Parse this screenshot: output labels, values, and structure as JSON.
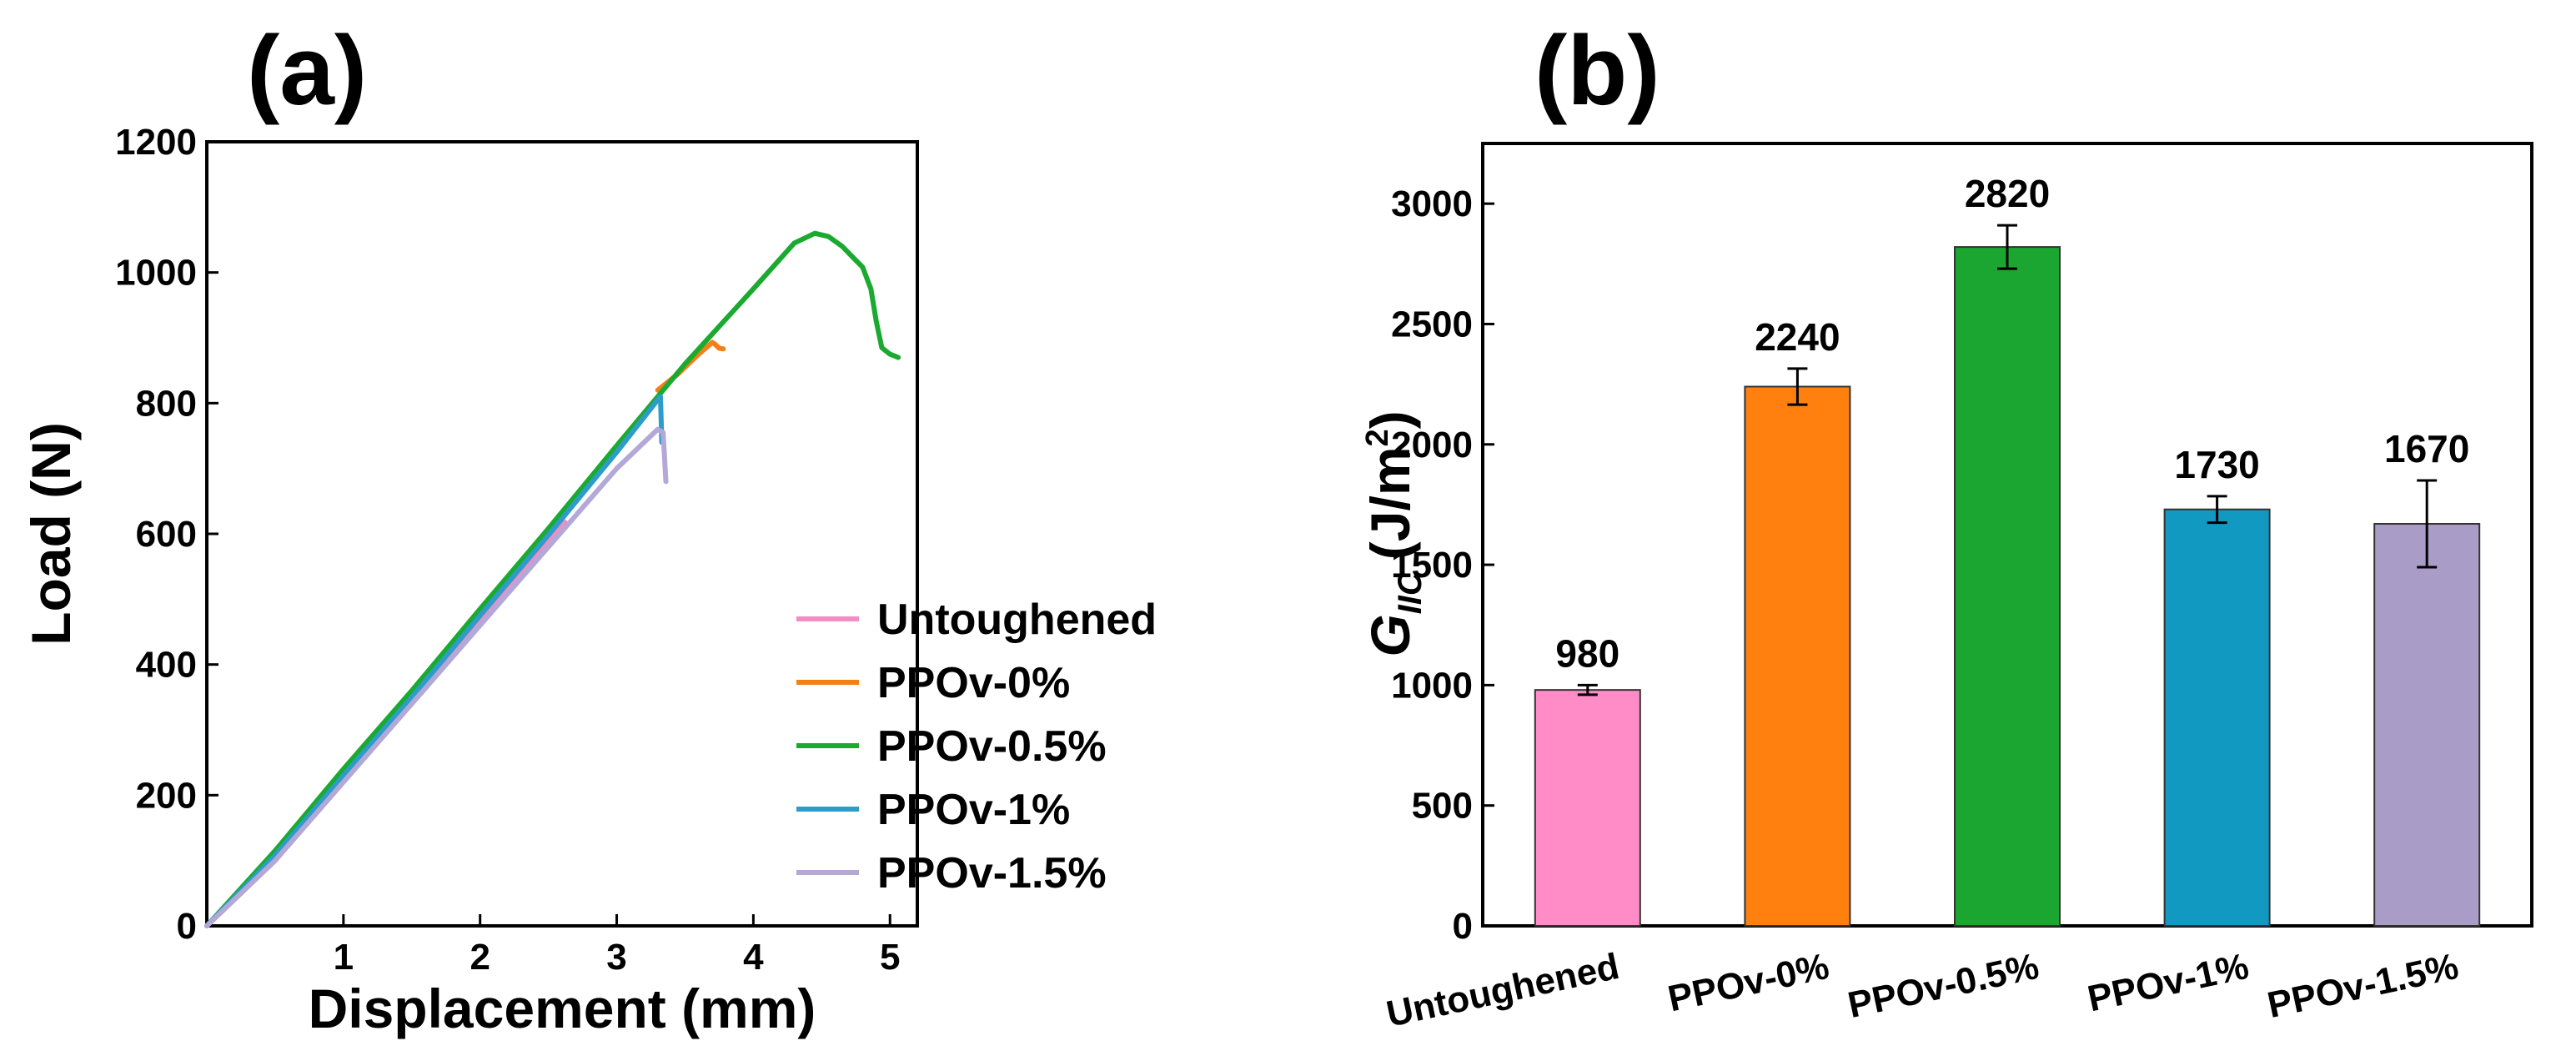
{
  "chart_data": [
    {
      "panel": "(a)",
      "type": "line",
      "title": "",
      "xlabel": "Displacement (mm)",
      "ylabel": "Load (N)",
      "xlim": [
        0,
        5.2
      ],
      "ylim": [
        0,
        1200
      ],
      "xticks": [
        1,
        2,
        3,
        4,
        5
      ],
      "yticks": [
        0,
        200,
        400,
        600,
        800,
        1000,
        1200
      ],
      "legend_position": "bottom-right",
      "series": [
        {
          "name": "Untoughened",
          "color": "#F28CC4",
          "points": [
            [
              0,
              0
            ],
            [
              0.5,
              100
            ],
            [
              1.0,
              225
            ],
            [
              1.5,
              345
            ],
            [
              2.0,
              465
            ],
            [
              2.5,
              590
            ],
            [
              2.62,
              618
            ]
          ]
        },
        {
          "name": "PPOv-0%",
          "color": "#F57F17",
          "points": [
            [
              3.3,
              820
            ],
            [
              3.45,
              845
            ],
            [
              3.6,
              875
            ],
            [
              3.7,
              893
            ],
            [
              3.72,
              890
            ],
            [
              3.75,
              884
            ],
            [
              3.78,
              883
            ]
          ]
        },
        {
          "name": "PPOv-0.5%",
          "color": "#1BAA30",
          "points": [
            [
              0,
              0
            ],
            [
              0.5,
              115
            ],
            [
              1.0,
              240
            ],
            [
              1.5,
              360
            ],
            [
              2.0,
              485
            ],
            [
              2.5,
              608
            ],
            [
              3.0,
              735
            ],
            [
              3.5,
              860
            ],
            [
              4.0,
              975
            ],
            [
              4.3,
              1045
            ],
            [
              4.45,
              1060
            ],
            [
              4.55,
              1055
            ],
            [
              4.65,
              1040
            ],
            [
              4.72,
              1025
            ],
            [
              4.8,
              1008
            ],
            [
              4.86,
              975
            ],
            [
              4.9,
              925
            ],
            [
              4.94,
              885
            ],
            [
              5.0,
              875
            ],
            [
              5.06,
              870
            ]
          ]
        },
        {
          "name": "PPOv-1%",
          "color": "#2E9CC8",
          "points": [
            [
              0,
              0
            ],
            [
              0.5,
              108
            ],
            [
              1.0,
              230
            ],
            [
              1.5,
              350
            ],
            [
              2.0,
              475
            ],
            [
              2.5,
              598
            ],
            [
              3.0,
              725
            ],
            [
              3.3,
              805
            ],
            [
              3.32,
              810
            ],
            [
              3.33,
              740
            ]
          ]
        },
        {
          "name": "PPOv-1.5%",
          "color": "#B3A8D8",
          "points": [
            [
              0,
              0
            ],
            [
              0.5,
              100
            ],
            [
              1.0,
              220
            ],
            [
              1.5,
              340
            ],
            [
              2.0,
              460
            ],
            [
              2.5,
              580
            ],
            [
              3.0,
              700
            ],
            [
              3.3,
              760
            ],
            [
              3.34,
              755
            ],
            [
              3.36,
              680
            ]
          ]
        }
      ]
    },
    {
      "panel": "(b)",
      "type": "bar",
      "title": "",
      "xlabel": "",
      "ylabel": "G_IIC (J/m²)",
      "ylabel_parts": {
        "symbol": "G",
        "subscript": "IIC",
        "unit": "(J/m",
        "superscript": "2",
        "close": ")"
      },
      "ylim": [
        0,
        3250
      ],
      "yticks": [
        0,
        500,
        1000,
        1500,
        2000,
        2500,
        3000
      ],
      "categories": [
        "Untoughened",
        "PPOv-0%",
        "PPOv-0.5%",
        "PPOv-1%",
        "PPOv-1.5%"
      ],
      "values": [
        980,
        2240,
        2820,
        1730,
        1670
      ],
      "value_labels": [
        "980",
        "2240",
        "2820",
        "1730",
        "1670"
      ],
      "errors": [
        20,
        75,
        90,
        55,
        180
      ],
      "colors": [
        "#FF8CC6",
        "#FF7F0F",
        "#1AA630",
        "#1199C1",
        "#A99CC6"
      ]
    }
  ]
}
